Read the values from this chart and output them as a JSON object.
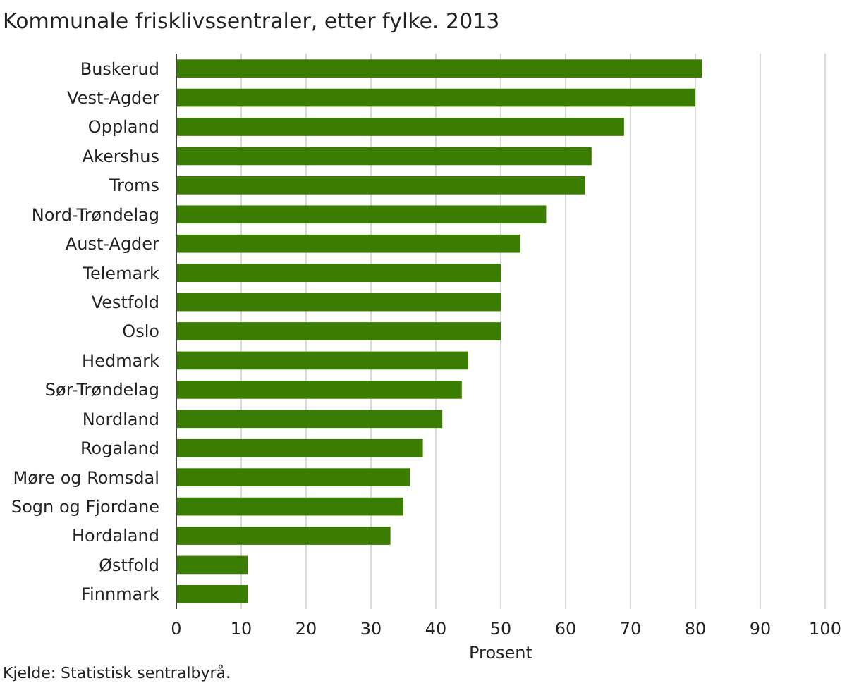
{
  "chart_data": {
    "type": "bar",
    "orientation": "horizontal",
    "title": "Kommunale frisklivssentraler, etter fylke. 2013",
    "xlabel": "Prosent",
    "categories": [
      "Buskerud",
      "Vest-Agder",
      "Oppland",
      "Akershus",
      "Troms",
      "Nord-Trøndelag",
      "Aust-Agder",
      "Telemark",
      "Vestfold",
      "Oslo",
      "Hedmark",
      "Sør-Trøndelag",
      "Nordland",
      "Rogaland",
      "Møre og Romsdal",
      "Sogn og Fjordane",
      "Hordaland",
      "Østfold",
      "Finnmark"
    ],
    "values": [
      81,
      80,
      69,
      64,
      63,
      57,
      53,
      50,
      50,
      50,
      45,
      44,
      41,
      38,
      36,
      35,
      33,
      11,
      11
    ],
    "color": "#3a7d00",
    "xlim": [
      0,
      100
    ],
    "xticks": [
      0,
      10,
      20,
      30,
      40,
      50,
      60,
      70,
      80,
      90,
      100
    ],
    "grid": "x",
    "annotations": [
      "Kjelde: Statistisk sentralbyrå."
    ]
  }
}
